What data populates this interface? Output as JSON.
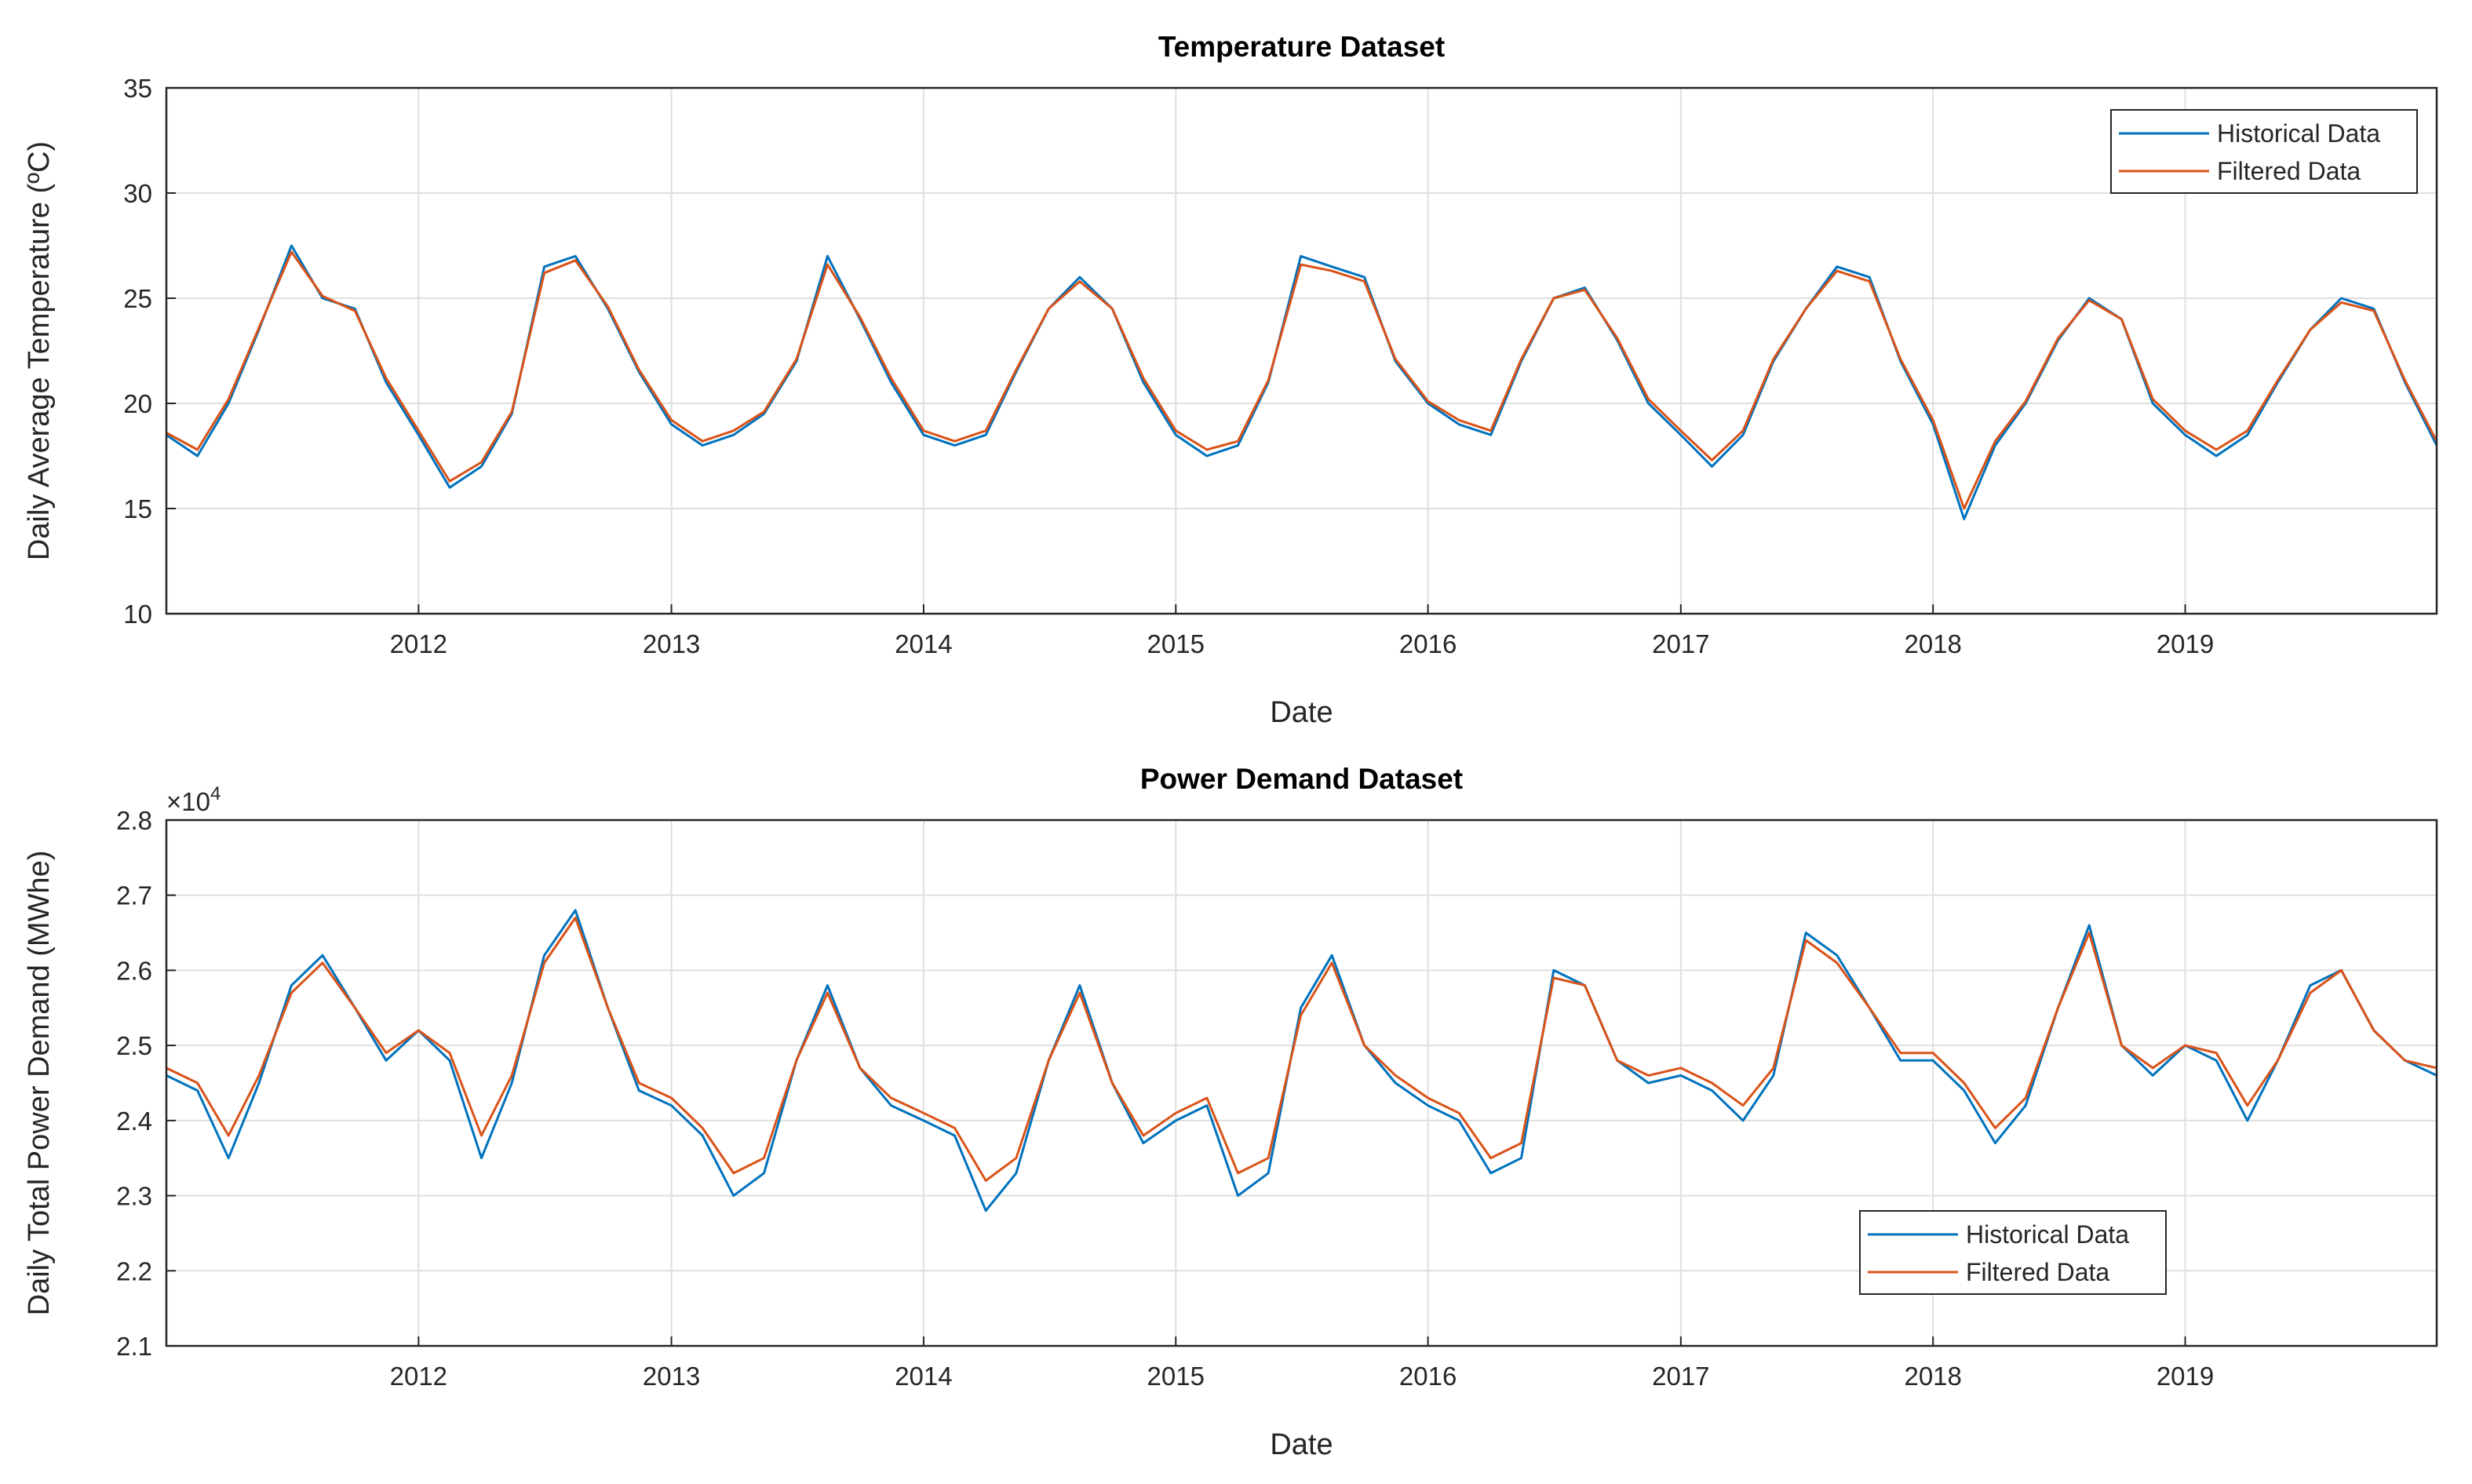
{
  "colors": {
    "background": "#ffffff",
    "axis": "#262626",
    "grid": "#dfdfdf",
    "historical": "#0072BD",
    "filtered": "#D95319"
  },
  "chart_data": [
    {
      "type": "line",
      "title": "Temperature Dataset",
      "xlabel": "Date",
      "ylabel": "Daily Average Temperature (ºC)",
      "xlim": [
        "2011-01-01",
        "2019-12-31"
      ],
      "ylim": [
        10,
        35
      ],
      "xticks": [
        "2012",
        "2013",
        "2014",
        "2015",
        "2016",
        "2017",
        "2018",
        "2019"
      ],
      "yticks": [
        10,
        15,
        20,
        25,
        30,
        35
      ],
      "exponent_label": "",
      "grid": true,
      "legend": {
        "location": "top-right",
        "entries": [
          "Historical Data",
          "Filtered Data"
        ]
      },
      "series": [
        {
          "name": "Historical Data",
          "color": "#0072BD",
          "x": [
            "2011-01-01",
            "2011-02-15",
            "2011-04-01",
            "2011-05-15",
            "2011-07-01",
            "2011-08-15",
            "2011-10-01",
            "2011-11-15",
            "2012-01-01",
            "2012-02-15",
            "2012-04-01",
            "2012-05-15",
            "2012-07-01",
            "2012-08-15",
            "2012-10-01",
            "2012-11-15",
            "2013-01-01",
            "2013-02-15",
            "2013-04-01",
            "2013-05-15",
            "2013-07-01",
            "2013-08-15",
            "2013-10-01",
            "2013-11-15",
            "2014-01-01",
            "2014-02-15",
            "2014-04-01",
            "2014-05-15",
            "2014-07-01",
            "2014-08-15",
            "2014-10-01",
            "2014-11-15",
            "2015-01-01",
            "2015-02-15",
            "2015-04-01",
            "2015-05-15",
            "2015-07-01",
            "2015-08-15",
            "2015-10-01",
            "2015-11-15",
            "2016-01-01",
            "2016-02-15",
            "2016-04-01",
            "2016-05-15",
            "2016-07-01",
            "2016-08-15",
            "2016-10-01",
            "2016-11-15",
            "2017-01-01",
            "2017-02-15",
            "2017-04-01",
            "2017-05-15",
            "2017-07-01",
            "2017-08-15",
            "2017-10-01",
            "2017-11-15",
            "2018-01-01",
            "2018-02-15",
            "2018-04-01",
            "2018-05-15",
            "2018-07-01",
            "2018-08-15",
            "2018-10-01",
            "2018-11-15",
            "2019-01-01",
            "2019-02-15",
            "2019-04-01",
            "2019-05-15",
            "2019-07-01",
            "2019-08-15",
            "2019-10-01",
            "2019-11-15",
            "2019-12-31"
          ],
          "y": [
            18.5,
            17.5,
            20.0,
            23.5,
            27.5,
            25.0,
            24.5,
            21.0,
            18.5,
            16.0,
            17.0,
            19.5,
            26.5,
            27.0,
            24.5,
            21.5,
            19.0,
            18.0,
            18.5,
            19.5,
            22.0,
            27.0,
            24.0,
            21.0,
            18.5,
            18.0,
            18.5,
            21.5,
            24.5,
            26.0,
            24.5,
            21.0,
            18.5,
            17.5,
            18.0,
            21.0,
            27.0,
            26.5,
            26.0,
            22.0,
            20.0,
            19.0,
            18.5,
            22.0,
            25.0,
            25.5,
            23.0,
            20.0,
            18.5,
            17.0,
            18.5,
            22.0,
            24.5,
            26.5,
            26.0,
            22.0,
            19.0,
            14.5,
            18.0,
            20.0,
            23.0,
            25.0,
            24.0,
            20.0,
            18.5,
            17.5,
            18.5,
            21.0,
            23.5,
            25.0,
            24.5,
            21.0,
            18.0
          ]
        },
        {
          "name": "Filtered Data",
          "color": "#D95319",
          "x": [
            "2011-01-01",
            "2011-02-15",
            "2011-04-01",
            "2011-05-15",
            "2011-07-01",
            "2011-08-15",
            "2011-10-01",
            "2011-11-15",
            "2012-01-01",
            "2012-02-15",
            "2012-04-01",
            "2012-05-15",
            "2012-07-01",
            "2012-08-15",
            "2012-10-01",
            "2012-11-15",
            "2013-01-01",
            "2013-02-15",
            "2013-04-01",
            "2013-05-15",
            "2013-07-01",
            "2013-08-15",
            "2013-10-01",
            "2013-11-15",
            "2014-01-01",
            "2014-02-15",
            "2014-04-01",
            "2014-05-15",
            "2014-07-01",
            "2014-08-15",
            "2014-10-01",
            "2014-11-15",
            "2015-01-01",
            "2015-02-15",
            "2015-04-01",
            "2015-05-15",
            "2015-07-01",
            "2015-08-15",
            "2015-10-01",
            "2015-11-15",
            "2016-01-01",
            "2016-02-15",
            "2016-04-01",
            "2016-05-15",
            "2016-07-01",
            "2016-08-15",
            "2016-10-01",
            "2016-11-15",
            "2017-01-01",
            "2017-02-15",
            "2017-04-01",
            "2017-05-15",
            "2017-07-01",
            "2017-08-15",
            "2017-10-01",
            "2017-11-15",
            "2018-01-01",
            "2018-02-15",
            "2018-04-01",
            "2018-05-15",
            "2018-07-01",
            "2018-08-15",
            "2018-10-01",
            "2018-11-15",
            "2019-01-01",
            "2019-02-15",
            "2019-04-01",
            "2019-05-15",
            "2019-07-01",
            "2019-08-15",
            "2019-10-01",
            "2019-11-15",
            "2019-12-31"
          ],
          "y": [
            18.6,
            17.8,
            20.2,
            23.6,
            27.2,
            25.1,
            24.4,
            21.2,
            18.7,
            16.3,
            17.2,
            19.6,
            26.2,
            26.8,
            24.6,
            21.6,
            19.2,
            18.2,
            18.7,
            19.6,
            22.1,
            26.6,
            24.1,
            21.2,
            18.7,
            18.2,
            18.7,
            21.6,
            24.5,
            25.8,
            24.5,
            21.2,
            18.7,
            17.8,
            18.2,
            21.1,
            26.6,
            26.3,
            25.8,
            22.1,
            20.1,
            19.2,
            18.7,
            22.1,
            25.0,
            25.4,
            23.1,
            20.2,
            18.7,
            17.3,
            18.7,
            22.1,
            24.5,
            26.3,
            25.8,
            22.1,
            19.2,
            15.0,
            18.2,
            20.1,
            23.1,
            24.9,
            24.0,
            20.2,
            18.7,
            17.8,
            18.7,
            21.1,
            23.5,
            24.8,
            24.4,
            21.1,
            18.2
          ]
        }
      ]
    },
    {
      "type": "line",
      "title": "Power Demand Dataset",
      "xlabel": "Date",
      "ylabel": "Daily Total Power Demand (MWhe)",
      "xlim": [
        "2011-01-01",
        "2019-12-31"
      ],
      "ylim": [
        2.1,
        2.8
      ],
      "xticks": [
        "2012",
        "2013",
        "2014",
        "2015",
        "2016",
        "2017",
        "2018",
        "2019"
      ],
      "yticks": [
        2.1,
        2.2,
        2.3,
        2.4,
        2.5,
        2.6,
        2.7,
        2.8
      ],
      "exponent_label": "×10",
      "exponent_power": "4",
      "grid": true,
      "legend": {
        "location": "bottom-center-right",
        "entries": [
          "Historical Data",
          "Filtered Data"
        ]
      },
      "series": [
        {
          "name": "Historical Data",
          "color": "#0072BD",
          "x": [
            "2011-01-01",
            "2011-02-15",
            "2011-04-01",
            "2011-05-15",
            "2011-07-01",
            "2011-08-15",
            "2011-10-01",
            "2011-11-15",
            "2012-01-01",
            "2012-02-15",
            "2012-04-01",
            "2012-05-15",
            "2012-07-01",
            "2012-08-15",
            "2012-10-01",
            "2012-11-15",
            "2013-01-01",
            "2013-02-15",
            "2013-04-01",
            "2013-05-15",
            "2013-07-01",
            "2013-08-15",
            "2013-10-01",
            "2013-11-15",
            "2014-01-01",
            "2014-02-15",
            "2014-04-01",
            "2014-05-15",
            "2014-07-01",
            "2014-08-15",
            "2014-10-01",
            "2014-11-15",
            "2015-01-01",
            "2015-02-15",
            "2015-04-01",
            "2015-05-15",
            "2015-07-01",
            "2015-08-15",
            "2015-10-01",
            "2015-11-15",
            "2016-01-01",
            "2016-02-15",
            "2016-04-01",
            "2016-05-15",
            "2016-07-01",
            "2016-08-15",
            "2016-10-01",
            "2016-11-15",
            "2017-01-01",
            "2017-02-15",
            "2017-04-01",
            "2017-05-15",
            "2017-07-01",
            "2017-08-15",
            "2017-10-01",
            "2017-11-15",
            "2018-01-01",
            "2018-02-15",
            "2018-04-01",
            "2018-05-15",
            "2018-07-01",
            "2018-08-15",
            "2018-10-01",
            "2018-11-15",
            "2019-01-01",
            "2019-02-15",
            "2019-04-01",
            "2019-05-15",
            "2019-07-01",
            "2019-08-15",
            "2019-10-01",
            "2019-11-15",
            "2019-12-31"
          ],
          "y": [
            2.46,
            2.44,
            2.35,
            2.45,
            2.58,
            2.62,
            2.55,
            2.48,
            2.52,
            2.48,
            2.35,
            2.45,
            2.62,
            2.68,
            2.55,
            2.44,
            2.42,
            2.38,
            2.3,
            2.33,
            2.48,
            2.58,
            2.47,
            2.42,
            2.4,
            2.38,
            2.28,
            2.33,
            2.48,
            2.58,
            2.45,
            2.37,
            2.4,
            2.42,
            2.3,
            2.33,
            2.55,
            2.62,
            2.5,
            2.45,
            2.42,
            2.4,
            2.33,
            2.35,
            2.6,
            2.58,
            2.48,
            2.45,
            2.46,
            2.44,
            2.4,
            2.46,
            2.65,
            2.62,
            2.55,
            2.48,
            2.48,
            2.44,
            2.37,
            2.42,
            2.55,
            2.66,
            2.5,
            2.46,
            2.5,
            2.48,
            2.4,
            2.48,
            2.58,
            2.6,
            2.52,
            2.48,
            2.46
          ]
        },
        {
          "name": "Filtered Data",
          "color": "#D95319",
          "x": [
            "2011-01-01",
            "2011-02-15",
            "2011-04-01",
            "2011-05-15",
            "2011-07-01",
            "2011-08-15",
            "2011-10-01",
            "2011-11-15",
            "2012-01-01",
            "2012-02-15",
            "2012-04-01",
            "2012-05-15",
            "2012-07-01",
            "2012-08-15",
            "2012-10-01",
            "2012-11-15",
            "2013-01-01",
            "2013-02-15",
            "2013-04-01",
            "2013-05-15",
            "2013-07-01",
            "2013-08-15",
            "2013-10-01",
            "2013-11-15",
            "2014-01-01",
            "2014-02-15",
            "2014-04-01",
            "2014-05-15",
            "2014-07-01",
            "2014-08-15",
            "2014-10-01",
            "2014-11-15",
            "2015-01-01",
            "2015-02-15",
            "2015-04-01",
            "2015-05-15",
            "2015-07-01",
            "2015-08-15",
            "2015-10-01",
            "2015-11-15",
            "2016-01-01",
            "2016-02-15",
            "2016-04-01",
            "2016-05-15",
            "2016-07-01",
            "2016-08-15",
            "2016-10-01",
            "2016-11-15",
            "2017-01-01",
            "2017-02-15",
            "2017-04-01",
            "2017-05-15",
            "2017-07-01",
            "2017-08-15",
            "2017-10-01",
            "2017-11-15",
            "2018-01-01",
            "2018-02-15",
            "2018-04-01",
            "2018-05-15",
            "2018-07-01",
            "2018-08-15",
            "2018-10-01",
            "2018-11-15",
            "2019-01-01",
            "2019-02-15",
            "2019-04-01",
            "2019-05-15",
            "2019-07-01",
            "2019-08-15",
            "2019-10-01",
            "2019-11-15",
            "2019-12-31"
          ],
          "y": [
            2.47,
            2.45,
            2.38,
            2.46,
            2.57,
            2.61,
            2.55,
            2.49,
            2.52,
            2.49,
            2.38,
            2.46,
            2.61,
            2.67,
            2.55,
            2.45,
            2.43,
            2.39,
            2.33,
            2.35,
            2.48,
            2.57,
            2.47,
            2.43,
            2.41,
            2.39,
            2.32,
            2.35,
            2.48,
            2.57,
            2.45,
            2.38,
            2.41,
            2.43,
            2.33,
            2.35,
            2.54,
            2.61,
            2.5,
            2.46,
            2.43,
            2.41,
            2.35,
            2.37,
            2.59,
            2.58,
            2.48,
            2.46,
            2.47,
            2.45,
            2.42,
            2.47,
            2.64,
            2.61,
            2.55,
            2.49,
            2.49,
            2.45,
            2.39,
            2.43,
            2.55,
            2.65,
            2.5,
            2.47,
            2.5,
            2.49,
            2.42,
            2.48,
            2.57,
            2.6,
            2.52,
            2.48,
            2.47
          ]
        }
      ]
    }
  ]
}
